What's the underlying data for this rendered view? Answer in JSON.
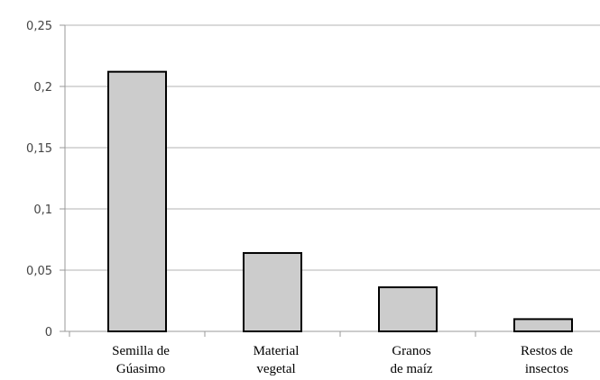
{
  "chart_data": {
    "type": "bar",
    "categories": [
      [
        "Semilla de",
        "Gúasimo"
      ],
      [
        "Material",
        "vegetal"
      ],
      [
        "Granos",
        "de maíz"
      ],
      [
        "Restos de",
        "insectos"
      ]
    ],
    "values": [
      0.212,
      0.064,
      0.036,
      0.01
    ],
    "ylim": [
      0,
      0.25
    ],
    "yticks": [
      0,
      0.05,
      0.1,
      0.15,
      0.2,
      0.25
    ],
    "ytick_labels": [
      "0",
      "0,05",
      "0,1",
      "0,15",
      "0,2",
      "0,25"
    ],
    "grid": true,
    "legend": "none",
    "title": "",
    "xlabel": "",
    "ylabel": "",
    "colors": {
      "bar_fill": "#cccccc",
      "bar_stroke": "#000000",
      "grid": "#b3b3b3",
      "axis": "#999999"
    }
  }
}
